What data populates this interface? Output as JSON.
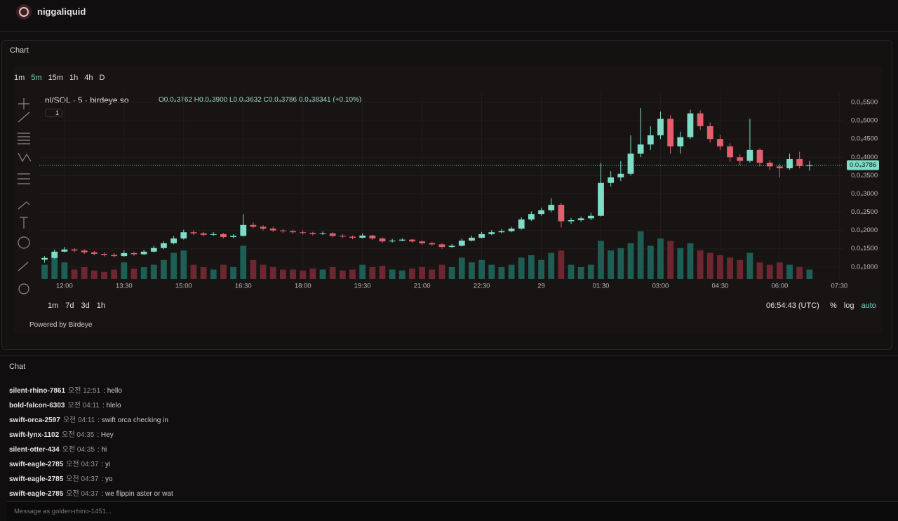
{
  "header": {
    "title": "niggaliquid"
  },
  "chart_panel": {
    "label": "Chart",
    "intervals": [
      "1m",
      "5m",
      "15m",
      "1h",
      "4h",
      "D"
    ],
    "active_interval": 1,
    "symbol": "nl/SOL · 5 · birdeye.so",
    "ohlc": "O0.0₄3762 H0.0₄3900 L0.0₄3632 C0.0₄3786 0.0₄38341 (+0.10%)",
    "indicator_count": "1",
    "ranges": [
      "1m",
      "7d",
      "3d",
      "1h"
    ],
    "clock": "06:54:43 (UTC)",
    "scale_options": [
      "%",
      "log",
      "auto"
    ],
    "powered_by": "Powered by Birdeye"
  },
  "chart_data": {
    "type": "candlestick",
    "up_color": "#7fdcc6",
    "down_color": "#e2606e",
    "up_volume_color": "#1e5f55",
    "down_volume_color": "#6e2731",
    "grid": true,
    "x": [
      0,
      15,
      30,
      45,
      60,
      75,
      90,
      105,
      120,
      135,
      150,
      165,
      180,
      195,
      210,
      225,
      240,
      255,
      270,
      285,
      300,
      315,
      330,
      345,
      360,
      375,
      390,
      405,
      420,
      435,
      450,
      465,
      480,
      495,
      510,
      525,
      540,
      555,
      570,
      585,
      600,
      615,
      630,
      645,
      660,
      675,
      690,
      705,
      720,
      735,
      750,
      765,
      780,
      795,
      810,
      825,
      840,
      855,
      870,
      885,
      900,
      915,
      930,
      945,
      960,
      975,
      990,
      1005,
      1020,
      1035,
      1050,
      1065,
      1080,
      1095,
      1110,
      1125,
      1140,
      1155
    ],
    "open": [
      1.2e-05,
      1.25e-05,
      1.42e-05,
      1.48e-05,
      1.45e-05,
      1.4e-05,
      1.36e-05,
      1.33e-05,
      1.3e-05,
      1.38e-05,
      1.35e-05,
      1.42e-05,
      1.52e-05,
      1.65e-05,
      1.78e-05,
      1.95e-05,
      1.92e-05,
      1.88e-05,
      1.9e-05,
      1.82e-05,
      1.85e-05,
      2.15e-05,
      2.1e-05,
      2.05e-05,
      2e-05,
      1.98e-05,
      1.95e-05,
      1.93e-05,
      1.9e-05,
      1.92e-05,
      1.85e-05,
      1.83e-05,
      1.8e-05,
      1.86e-05,
      1.78e-05,
      1.7e-05,
      1.72e-05,
      1.75e-05,
      1.7e-05,
      1.65e-05,
      1.62e-05,
      1.55e-05,
      1.58e-05,
      1.72e-05,
      1.8e-05,
      1.9e-05,
      1.95e-05,
      1.98e-05,
      2.05e-05,
      2.3e-05,
      2.45e-05,
      2.55e-05,
      2.7e-05,
      2.25e-05,
      2.28e-05,
      2.33e-05,
      2.4e-05,
      3.3e-05,
      3.45e-05,
      3.55e-05,
      4.1e-05,
      4.35e-05,
      4.6e-05,
      5.05e-05,
      4.3e-05,
      4.55e-05,
      5.2e-05,
      4.85e-05,
      4.5e-05,
      4.3e-05,
      4e-05,
      3.9e-05,
      4.2e-05,
      3.85e-05,
      3.75e-05,
      3.7e-05,
      3.95e-05,
      3.762e-05
    ],
    "high": [
      1.3e-05,
      1.48e-05,
      1.55e-05,
      1.52e-05,
      1.48e-05,
      1.44e-05,
      1.4e-05,
      1.38e-05,
      1.45e-05,
      1.42e-05,
      1.47e-05,
      1.58e-05,
      1.7e-05,
      1.85e-05,
      2.02e-05,
      2e-05,
      1.96e-05,
      1.95e-05,
      1.93e-05,
      1.9e-05,
      2.45e-05,
      2.22e-05,
      2.14e-05,
      2.1e-05,
      2.04e-05,
      2.02e-05,
      2e-05,
      1.96e-05,
      1.97e-05,
      1.95e-05,
      1.9e-05,
      1.86e-05,
      1.92e-05,
      1.88e-05,
      1.81e-05,
      1.77e-05,
      1.79e-05,
      1.77e-05,
      1.73e-05,
      1.69e-05,
      1.65e-05,
      1.63e-05,
      1.78e-05,
      1.86e-05,
      1.96e-05,
      2.01e-05,
      2.04e-05,
      2.1e-05,
      2.36e-05,
      2.52e-05,
      2.62e-05,
      2.88e-05,
      2.75e-05,
      2.34e-05,
      2.38e-05,
      2.48e-05,
      3.85e-05,
      3.62e-05,
      3.9e-05,
      4.6e-05,
      5.35e-05,
      4.85e-05,
      5.25e-05,
      5.15e-05,
      4.7e-05,
      5.3e-05,
      5.28e-05,
      4.95e-05,
      4.62e-05,
      4.38e-05,
      4.08e-05,
      5.05e-05,
      4.25e-05,
      3.92e-05,
      3.82e-05,
      4.1e-05,
      4.15e-05,
      3.9e-05
    ],
    "low": [
      1.12e-05,
      1.22e-05,
      1.4e-05,
      1.4e-05,
      1.36e-05,
      1.32e-05,
      1.29e-05,
      1.26e-05,
      1.28e-05,
      1.31e-05,
      1.33e-05,
      1.4e-05,
      1.49e-05,
      1.62e-05,
      1.75e-05,
      1.88e-05,
      1.84e-05,
      1.85e-05,
      1.78e-05,
      1.79e-05,
      1.83e-05,
      2.06e-05,
      2e-05,
      1.96e-05,
      1.93e-05,
      1.91e-05,
      1.89e-05,
      1.86e-05,
      1.88e-05,
      1.81e-05,
      1.79e-05,
      1.76e-05,
      1.78e-05,
      1.74e-05,
      1.66e-05,
      1.67e-05,
      1.7e-05,
      1.66e-05,
      1.61e-05,
      1.58e-05,
      1.5e-05,
      1.52e-05,
      1.56e-05,
      1.7e-05,
      1.78e-05,
      1.87e-05,
      1.92e-05,
      1.95e-05,
      2.02e-05,
      2.26e-05,
      2.4e-05,
      2.5e-05,
      2.08e-05,
      2.18e-05,
      2.24e-05,
      2.28e-05,
      2.38e-05,
      3.2e-05,
      3.35e-05,
      3.5e-05,
      4e-05,
      4.2e-05,
      4.5e-05,
      4.1e-05,
      4.1e-05,
      4.5e-05,
      4.75e-05,
      4.4e-05,
      4.2e-05,
      3.88e-05,
      3.78e-05,
      3.85e-05,
      3.75e-05,
      3.65e-05,
      3.45e-05,
      3.66e-05,
      3.7e-05,
      3.632e-05
    ],
    "close": [
      1.25e-05,
      1.42e-05,
      1.48e-05,
      1.45e-05,
      1.4e-05,
      1.36e-05,
      1.33e-05,
      1.3e-05,
      1.38e-05,
      1.35e-05,
      1.42e-05,
      1.52e-05,
      1.65e-05,
      1.78e-05,
      1.95e-05,
      1.92e-05,
      1.88e-05,
      1.9e-05,
      1.82e-05,
      1.85e-05,
      2.15e-05,
      2.1e-05,
      2.05e-05,
      2e-05,
      1.98e-05,
      1.95e-05,
      1.93e-05,
      1.9e-05,
      1.92e-05,
      1.85e-05,
      1.83e-05,
      1.8e-05,
      1.86e-05,
      1.78e-05,
      1.7e-05,
      1.72e-05,
      1.75e-05,
      1.7e-05,
      1.65e-05,
      1.62e-05,
      1.55e-05,
      1.58e-05,
      1.72e-05,
      1.8e-05,
      1.9e-05,
      1.95e-05,
      1.98e-05,
      2.05e-05,
      2.3e-05,
      2.45e-05,
      2.55e-05,
      2.7e-05,
      2.25e-05,
      2.28e-05,
      2.33e-05,
      2.4e-05,
      3.3e-05,
      3.45e-05,
      3.55e-05,
      4.1e-05,
      4.35e-05,
      4.6e-05,
      5.05e-05,
      4.3e-05,
      4.55e-05,
      5.2e-05,
      4.85e-05,
      4.5e-05,
      4.3e-05,
      4e-05,
      3.9e-05,
      4.2e-05,
      3.85e-05,
      3.75e-05,
      3.7e-05,
      3.95e-05,
      3.762e-05,
      3.786e-05
    ],
    "volume": [
      30,
      45,
      35,
      20,
      25,
      18,
      15,
      20,
      35,
      22,
      25,
      30,
      40,
      55,
      60,
      30,
      25,
      20,
      30,
      25,
      70,
      40,
      30,
      25,
      20,
      20,
      18,
      22,
      20,
      25,
      18,
      20,
      30,
      25,
      28,
      20,
      18,
      22,
      25,
      20,
      30,
      25,
      45,
      35,
      40,
      30,
      25,
      30,
      45,
      50,
      40,
      55,
      60,
      30,
      25,
      30,
      80,
      60,
      65,
      75,
      100,
      70,
      85,
      80,
      65,
      75,
      60,
      55,
      50,
      45,
      40,
      55,
      35,
      30,
      35,
      30,
      25,
      20
    ],
    "last_price": 3.786e-05,
    "last_price_label": "0.0₄3786",
    "xlim": [
      -8,
      1206
    ],
    "xticks": [
      {
        "value": 30,
        "label": "12:00"
      },
      {
        "value": 120,
        "label": "13:30"
      },
      {
        "value": 210,
        "label": "15:00"
      },
      {
        "value": 300,
        "label": "16:30"
      },
      {
        "value": 390,
        "label": "18:00"
      },
      {
        "value": 480,
        "label": "19:30"
      },
      {
        "value": 570,
        "label": "21:00"
      },
      {
        "value": 660,
        "label": "22:30"
      },
      {
        "value": 750,
        "label": "29"
      },
      {
        "value": 840,
        "label": "01:30"
      },
      {
        "value": 930,
        "label": "03:00"
      },
      {
        "value": 1020,
        "label": "04:30"
      },
      {
        "value": 1110,
        "label": "06:00"
      },
      {
        "value": 1200,
        "label": "07:30"
      }
    ],
    "ylim": [
      6.7e-06,
      5.75e-05
    ],
    "yticks": [
      {
        "value": 1e-05,
        "label": "0.0₄1000"
      },
      {
        "value": 1.5e-05,
        "label": "0.0₄1500"
      },
      {
        "value": 2e-05,
        "label": "0.0₄2000"
      },
      {
        "value": 2.5e-05,
        "label": "0.0₄2500"
      },
      {
        "value": 3e-05,
        "label": "0.0₄3000"
      },
      {
        "value": 3.5e-05,
        "label": "0.0₄3500"
      },
      {
        "value": 4e-05,
        "label": "0.0₄4000"
      },
      {
        "value": 4.5e-05,
        "label": "0.0₄4500"
      },
      {
        "value": 5e-05,
        "label": "0.0₄5000"
      },
      {
        "value": 5.5e-05,
        "label": "0.0₄5500"
      }
    ]
  },
  "chat": {
    "label": "Chat",
    "placeholder": "Message as golden-rhino-1451...",
    "messages": [
      {
        "name": "silent-rhino-7861",
        "time": "오전 12:51",
        "text": ": hello"
      },
      {
        "name": "bold-falcon-6303",
        "time": "오전 04:11",
        "text": ": hlelo"
      },
      {
        "name": "swift-orca-2597",
        "time": "오전 04:11",
        "text": ": swift orca checking in"
      },
      {
        "name": "swift-lynx-1102",
        "time": "오전 04:35",
        "text": ": Hey"
      },
      {
        "name": "silent-otter-434",
        "time": "오전 04:35",
        "text": ": hi"
      },
      {
        "name": "swift-eagle-2785",
        "time": "오전 04:37",
        "text": ": yi"
      },
      {
        "name": "swift-eagle-2785",
        "time": "오전 04:37",
        "text": ": yo"
      },
      {
        "name": "swift-eagle-2785",
        "time": "오전 04:37",
        "text": ": we flippin aster or wat"
      }
    ]
  }
}
